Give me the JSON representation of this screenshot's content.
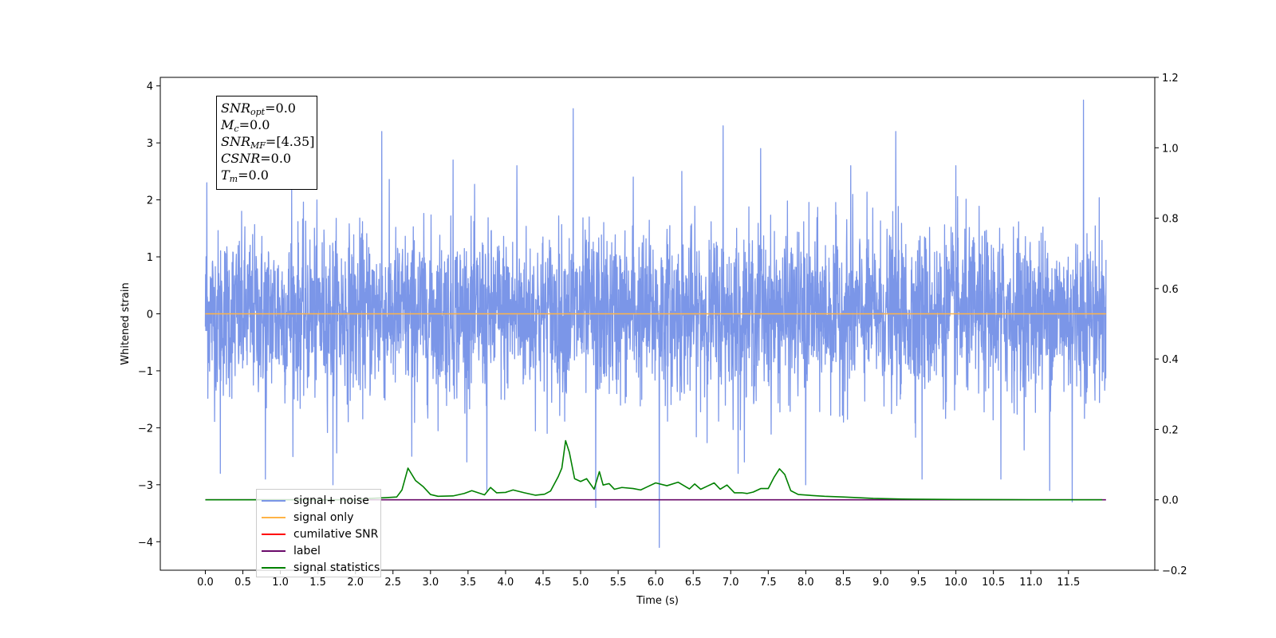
{
  "chart_data": {
    "type": "line",
    "xlabel": "Time (s)",
    "ylabel": "Whitened strain",
    "xlim": [
      -0.6,
      12.65
    ],
    "ylim": [
      -4.5,
      4.15
    ],
    "y2lim": [
      -0.2,
      1.2
    ],
    "x_ticks": [
      "0.0",
      "0.5",
      "1.0",
      "1.5",
      "2.0",
      "2.5",
      "3.0",
      "3.5",
      "4.0",
      "4.5",
      "5.0",
      "5.5",
      "6.0",
      "6.5",
      "7.0",
      "7.5",
      "8.0",
      "8.5",
      "9.0",
      "9.5",
      "10.0",
      "10.5",
      "11.0",
      "11.5"
    ],
    "y_ticks": [
      "−4",
      "−3",
      "−2",
      "−1",
      "0",
      "1",
      "2",
      "3",
      "4"
    ],
    "y2_ticks": [
      "−0.2",
      "0.0",
      "0.2",
      "0.4",
      "0.6",
      "0.8",
      "1.0",
      "1.2"
    ],
    "annotations": [
      {
        "name": "SNR",
        "sub": "opt",
        "value": "=0.0"
      },
      {
        "name": "M",
        "sub": "c",
        "value": "=0.0"
      },
      {
        "name": "SNR",
        "sub": "MF",
        "value": "=[4.35]"
      },
      {
        "name": "CSNR",
        "sub": "",
        "value": "=0.0"
      },
      {
        "name": "T",
        "sub": "m",
        "value": "=0.0"
      }
    ],
    "legend_placement": "lower-left",
    "series": [
      {
        "name": "signal+ noise",
        "color": "#7b96e8",
        "axis": "left",
        "noise": {
          "x_start": 0.0,
          "x_end": 12.0,
          "samples": 3600,
          "std": 0.72,
          "spikes": [
            [
              0.02,
              2.3
            ],
            [
              0.2,
              -2.8
            ],
            [
              0.8,
              -2.9
            ],
            [
              1.15,
              2.2
            ],
            [
              1.7,
              -3.0
            ],
            [
              2.35,
              3.2
            ],
            [
              2.75,
              -2.5
            ],
            [
              3.3,
              2.7
            ],
            [
              3.75,
              -3.1
            ],
            [
              4.15,
              2.6
            ],
            [
              4.9,
              3.6
            ],
            [
              5.2,
              -3.4
            ],
            [
              5.7,
              2.4
            ],
            [
              6.05,
              -4.1
            ],
            [
              6.35,
              2.5
            ],
            [
              6.9,
              3.3
            ],
            [
              7.1,
              -2.8
            ],
            [
              7.4,
              2.9
            ],
            [
              8.0,
              -3.0
            ],
            [
              8.6,
              2.6
            ],
            [
              9.2,
              3.2
            ],
            [
              9.55,
              -2.9
            ],
            [
              10.0,
              2.6
            ],
            [
              10.6,
              -2.9
            ],
            [
              11.25,
              -3.1
            ],
            [
              11.55,
              -3.3
            ],
            [
              11.7,
              3.75
            ]
          ]
        }
      },
      {
        "name": "signal only",
        "color": "#ffb347",
        "axis": "left",
        "x": [
          0.0,
          12.0
        ],
        "y": [
          0.0,
          0.0
        ]
      },
      {
        "name": "cumilative SNR",
        "color": "#ff0000",
        "axis": "right",
        "x": [],
        "y": []
      },
      {
        "name": "label",
        "color": "#6a0a6a",
        "axis": "right",
        "x": [
          0.0,
          12.0
        ],
        "y": [
          0.0,
          0.0
        ]
      },
      {
        "name": "signal statistics",
        "color": "#008000",
        "axis": "right",
        "x": [
          0.0,
          1.0,
          2.0,
          2.2,
          2.4,
          2.55,
          2.62,
          2.7,
          2.8,
          2.9,
          3.0,
          3.1,
          3.3,
          3.45,
          3.55,
          3.72,
          3.8,
          3.88,
          4.0,
          4.1,
          4.25,
          4.4,
          4.52,
          4.6,
          4.7,
          4.75,
          4.8,
          4.85,
          4.92,
          5.0,
          5.08,
          5.18,
          5.25,
          5.3,
          5.38,
          5.45,
          5.55,
          5.7,
          5.8,
          5.88,
          6.0,
          6.15,
          6.3,
          6.45,
          6.52,
          6.6,
          6.7,
          6.78,
          6.86,
          6.95,
          7.05,
          7.15,
          7.22,
          7.3,
          7.4,
          7.5,
          7.58,
          7.65,
          7.72,
          7.8,
          7.9,
          8.1,
          8.25,
          8.5,
          8.9,
          9.3,
          10.0,
          11.0,
          11.95
        ],
        "y": [
          0.0,
          0.0,
          0.0,
          0.004,
          0.006,
          0.008,
          0.028,
          0.09,
          0.055,
          0.038,
          0.015,
          0.01,
          0.011,
          0.018,
          0.026,
          0.014,
          0.035,
          0.02,
          0.021,
          0.028,
          0.02,
          0.013,
          0.016,
          0.025,
          0.065,
          0.09,
          0.168,
          0.135,
          0.06,
          0.052,
          0.06,
          0.03,
          0.08,
          0.042,
          0.046,
          0.03,
          0.035,
          0.032,
          0.028,
          0.036,
          0.048,
          0.04,
          0.05,
          0.031,
          0.045,
          0.03,
          0.04,
          0.048,
          0.03,
          0.042,
          0.02,
          0.02,
          0.018,
          0.022,
          0.032,
          0.032,
          0.065,
          0.088,
          0.072,
          0.026,
          0.015,
          0.012,
          0.01,
          0.008,
          0.004,
          0.002,
          0.001,
          0.0,
          0.0
        ]
      }
    ]
  }
}
